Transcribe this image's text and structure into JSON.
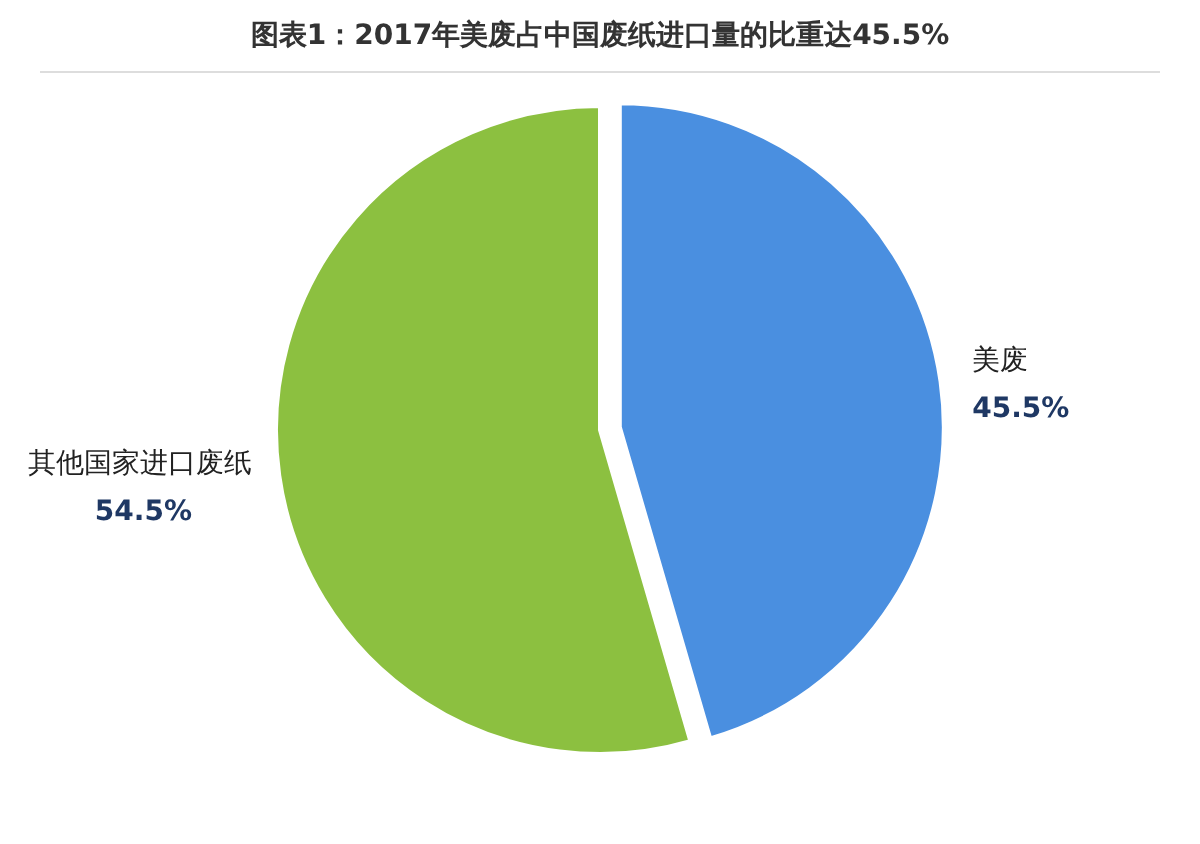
{
  "chart_data": {
    "type": "pie",
    "title": "图表1：2017年美废占中国废纸进口量的比重达45.5%",
    "categories": [
      "美废",
      "其他国家进口废纸"
    ],
    "values": [
      45.5,
      54.5
    ],
    "colors": [
      "#4a8fe0",
      "#8cc040"
    ],
    "value_labels": [
      "45.5%",
      "54.5%"
    ]
  }
}
